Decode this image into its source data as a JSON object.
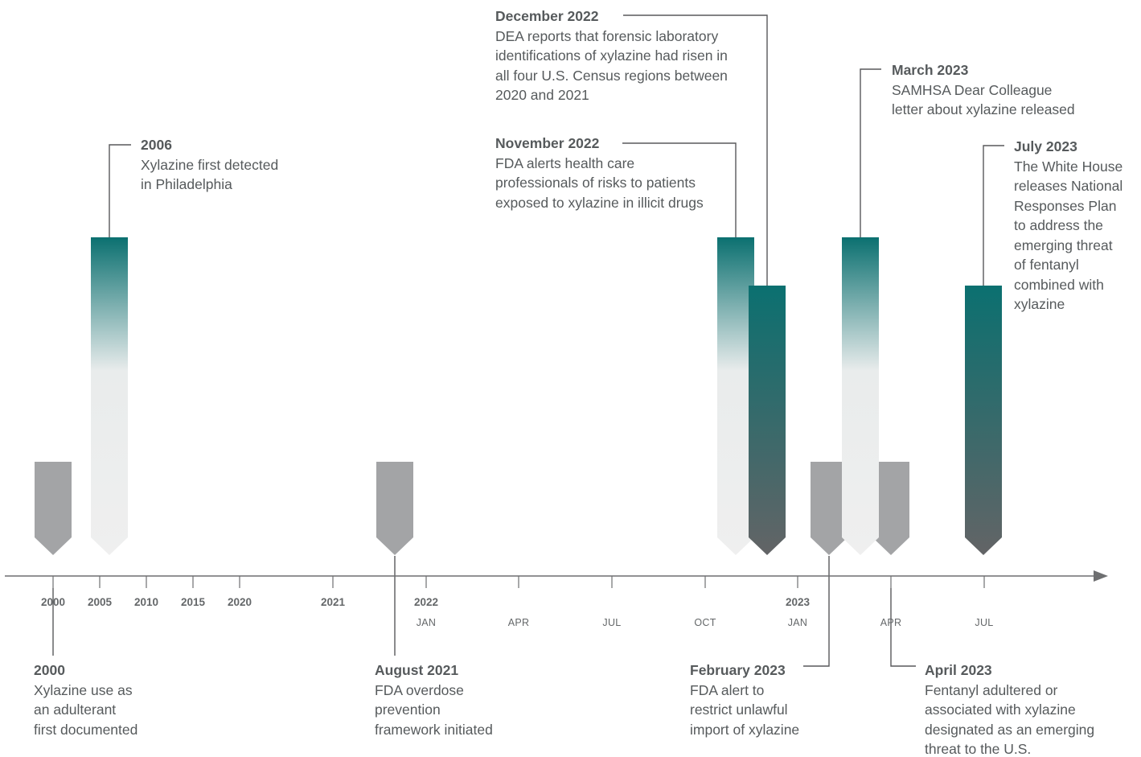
{
  "colors": {
    "teal": "#0b7070",
    "gray_marker": "#a3a4a6",
    "dark_gray": "#636466",
    "light_fade": "#efefef",
    "text": "#565a5c",
    "axis": "#6e6f71"
  },
  "axis": {
    "year_ticks": [
      "2000",
      "2005",
      "2010",
      "2015",
      "2020",
      "2021",
      "2022",
      "2023"
    ],
    "month_ticks": [
      "JAN",
      "APR",
      "JUL",
      "OCT",
      "JAN",
      "APR",
      "JUL"
    ]
  },
  "events": [
    {
      "id": "e2000",
      "title": "2000",
      "lines": [
        "Xylazine use as",
        "an adulterant",
        "first documented"
      ],
      "marker": "gray"
    },
    {
      "id": "e2006",
      "title": "2006",
      "lines": [
        "Xylazine first detected",
        "in Philadelphia"
      ],
      "marker": "teal-fade"
    },
    {
      "id": "aug2021",
      "title": "August 2021",
      "lines": [
        "FDA overdose",
        "prevention",
        "framework initiated"
      ],
      "marker": "gray"
    },
    {
      "id": "nov2022",
      "title": "November 2022",
      "lines": [
        "FDA alerts health care",
        "professionals of risks to patients",
        "exposed to xylazine in illicit drugs"
      ],
      "marker": "teal-fade"
    },
    {
      "id": "dec2022",
      "title": "December 2022",
      "lines": [
        "DEA reports that forensic laboratory",
        "identifications of xylazine had risen in",
        "all four U.S. Census regions between",
        "2020 and 2021"
      ],
      "marker": "teal-dark"
    },
    {
      "id": "feb2023",
      "title": "February 2023",
      "lines": [
        "FDA alert to",
        "restrict unlawful",
        "import of xylazine"
      ],
      "marker": "gray"
    },
    {
      "id": "mar2023",
      "title": "March 2023",
      "lines": [
        "SAMHSA Dear Colleague",
        "letter about xylazine released"
      ],
      "marker": "teal-fade"
    },
    {
      "id": "apr2023",
      "title": "April 2023",
      "lines": [
        "Fentanyl adultered or",
        "associated with xylazine",
        "designated as an emerging",
        "threat to the U.S."
      ],
      "marker": "gray"
    },
    {
      "id": "jul2023",
      "title": "July 2023",
      "lines": [
        "The White House",
        "releases National",
        "Responses Plan",
        "to address the",
        "emerging threat",
        "of fentanyl",
        "combined with",
        "xylazine"
      ],
      "marker": "teal-dark"
    }
  ]
}
